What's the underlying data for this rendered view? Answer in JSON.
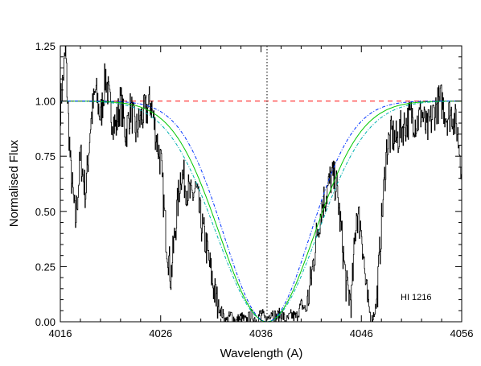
{
  "chart_data": {
    "type": "line",
    "title": "",
    "xlabel": "Wavelength (A)",
    "ylabel": "Normalised Flux",
    "xlim": [
      4016,
      4056
    ],
    "ylim": [
      0,
      1.25
    ],
    "xticks": [
      4016,
      4026,
      4036,
      4046,
      4056
    ],
    "xtick_labels": [
      "4016",
      "4026",
      "4036",
      "4046",
      "4056"
    ],
    "yticks": [
      0,
      0.25,
      0.5,
      0.75,
      1.0,
      1.25
    ],
    "ytick_labels": [
      "0.00",
      "0.25",
      "0.50",
      "0.75",
      "1.00",
      "1.25"
    ],
    "grid": false,
    "annotation": "HI 1216",
    "continuum_level": 1.0,
    "line_center": 4036.6,
    "colors": {
      "data": "#000000",
      "continuum": "#ff3b3b",
      "fit_center": "#00c800",
      "fit_upper": "#0033ff",
      "fit_lower": "#00b0b0",
      "line_center": "#000000"
    },
    "data_series": {
      "name": "",
      "x": [
        4016.0,
        4016.5,
        4017.0,
        4017.5,
        4018.0,
        4018.5,
        4019.0,
        4019.5,
        4020.0,
        4020.5,
        4021.0,
        4021.5,
        4022.0,
        4022.5,
        4023.0,
        4023.5,
        4024.0,
        4024.5,
        4025.0,
        4025.5,
        4026.0,
        4026.5,
        4027.0,
        4027.5,
        4028.0,
        4028.5,
        4029.0,
        4029.5,
        4030.0,
        4030.5,
        4031.0,
        4031.5,
        4032.0,
        4032.5,
        4033.0,
        4033.5,
        4034.0,
        4034.5,
        4035.0,
        4035.5,
        4036.0,
        4036.5,
        4037.0,
        4037.5,
        4038.0,
        4038.5,
        4039.0,
        4039.5,
        4040.0,
        4040.5,
        4041.0,
        4041.5,
        4042.0,
        4042.5,
        4043.0,
        4043.5,
        4044.0,
        4044.5,
        4045.0,
        4045.5,
        4046.0,
        4046.5,
        4047.0,
        4047.5,
        4048.0,
        4048.5,
        4049.0,
        4049.5,
        4050.0,
        4050.5,
        4051.0,
        4051.5,
        4052.0,
        4052.5,
        4053.0,
        4053.5,
        4054.0,
        4054.5,
        4055.0,
        4055.5,
        4056.0
      ],
      "y": [
        0.98,
        1.22,
        0.7,
        0.45,
        0.75,
        0.58,
        0.9,
        1.05,
        0.92,
        1.12,
        0.95,
        0.88,
        1.0,
        0.85,
        0.97,
        0.86,
        0.92,
        0.95,
        1.0,
        0.85,
        0.72,
        0.4,
        0.2,
        0.45,
        0.68,
        0.62,
        0.56,
        0.6,
        0.45,
        0.35,
        0.22,
        0.1,
        0.05,
        0.0,
        0.03,
        0.0,
        0.02,
        0.0,
        0.03,
        0.01,
        0.04,
        0.0,
        0.05,
        0.02,
        0.04,
        0.0,
        0.03,
        0.02,
        0.08,
        0.05,
        0.2,
        0.38,
        0.52,
        0.58,
        0.66,
        0.62,
        0.4,
        0.15,
        0.1,
        0.5,
        0.42,
        0.12,
        0.0,
        0.08,
        0.45,
        0.78,
        0.85,
        0.82,
        0.88,
        0.9,
        0.94,
        0.9,
        0.95,
        0.86,
        0.92,
        0.98,
        1.0,
        0.93,
        0.95,
        0.88,
        0.7
      ]
    },
    "fit_center": {
      "center": 4036.6,
      "depth": 1.0,
      "sigma": 4.7,
      "floor": 0.0
    },
    "fit_upper": {
      "center": 4036.6,
      "depth": 1.0,
      "sigma": 4.3,
      "floor": 0.0
    },
    "fit_lower": {
      "center": 4036.6,
      "depth": 1.0,
      "sigma": 5.0,
      "floor": 0.0
    }
  }
}
